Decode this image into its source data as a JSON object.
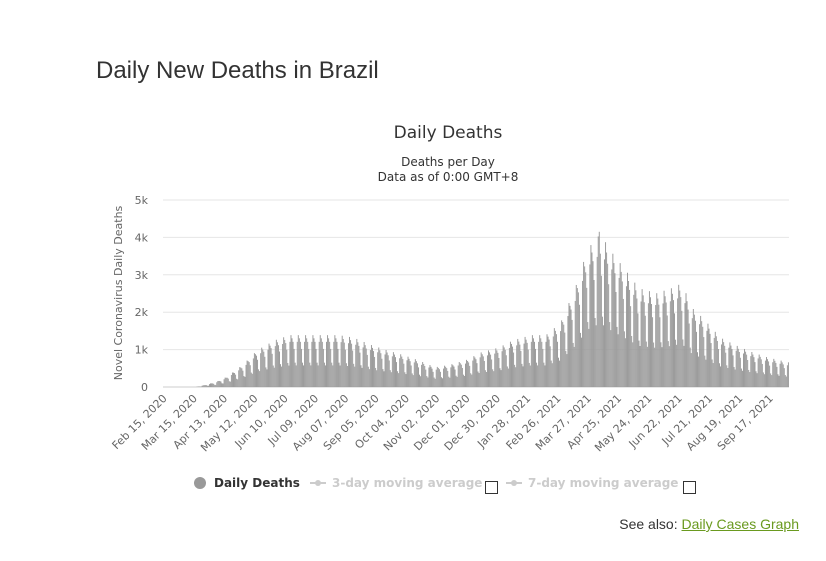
{
  "page": {
    "title": "Daily New Deaths in Brazil",
    "see_also_label": "See also:",
    "see_also_link": "Daily Cases Graph"
  },
  "colors": {
    "bar": "#999999",
    "grid": "#e6e6e6",
    "link": "#6a9a1f",
    "legend_inactive": "#cccccc"
  },
  "legend": {
    "items": [
      {
        "label": "Daily Deaths",
        "active": true,
        "icon": "circle-marker-icon"
      },
      {
        "label": "3-day moving average",
        "active": false,
        "icon": "line-marker-icon"
      },
      {
        "label": "7-day moving average",
        "active": false,
        "icon": "line-marker-icon"
      }
    ]
  },
  "chart_data": {
    "type": "bar",
    "title": "Daily Deaths",
    "subtitle_lines": [
      "Deaths per Day",
      "Data as of 0:00 GMT+8"
    ],
    "ylabel": "Novel Coronavirus Daily Deaths",
    "xlabel": "",
    "ylim": [
      0,
      5000
    ],
    "y_ticks": [
      0,
      1000,
      2000,
      3000,
      4000,
      5000
    ],
    "y_tick_labels": [
      "0",
      "1k",
      "2k",
      "3k",
      "4k",
      "5k"
    ],
    "x_tick_labels": [
      "Feb 15, 2020",
      "Mar 15, 2020",
      "Apr 13, 2020",
      "May 12, 2020",
      "Jun 10, 2020",
      "Jul 09, 2020",
      "Aug 07, 2020",
      "Sep 05, 2020",
      "Oct 04, 2020",
      "Nov 02, 2020",
      "Dec 01, 2020",
      "Dec 30, 2020",
      "Jan 28, 2021",
      "Feb 26, 2021",
      "Mar 27, 2021",
      "Apr 25, 2021",
      "May 24, 2021",
      "Jun 22, 2021",
      "Jul 21, 2021",
      "Aug 19, 2021",
      "Sep 17, 2021"
    ],
    "x_start_date": "2020-02-15",
    "x_end_date": "2021-10-05",
    "grid": true,
    "legend_position": "bottom",
    "series": [
      {
        "name": "Daily Deaths",
        "weekly_average_points": [
          [
            "2020-02-15",
            0
          ],
          [
            "2020-03-17",
            0
          ],
          [
            "2020-03-25",
            40
          ],
          [
            "2020-04-05",
            100
          ],
          [
            "2020-04-15",
            200
          ],
          [
            "2020-05-01",
            450
          ],
          [
            "2020-05-15",
            750
          ],
          [
            "2020-06-01",
            950
          ],
          [
            "2020-06-15",
            1050
          ],
          [
            "2020-07-01",
            1050
          ],
          [
            "2020-07-15",
            1050
          ],
          [
            "2020-08-01",
            1050
          ],
          [
            "2020-08-15",
            1000
          ],
          [
            "2020-09-01",
            850
          ],
          [
            "2020-09-15",
            750
          ],
          [
            "2020-10-01",
            650
          ],
          [
            "2020-10-15",
            550
          ],
          [
            "2020-11-01",
            400
          ],
          [
            "2020-11-15",
            450
          ],
          [
            "2020-12-01",
            550
          ],
          [
            "2020-12-15",
            700
          ],
          [
            "2021-01-01",
            800
          ],
          [
            "2021-01-15",
            950
          ],
          [
            "2021-02-01",
            1050
          ],
          [
            "2021-02-15",
            1050
          ],
          [
            "2021-03-01",
            1300
          ],
          [
            "2021-03-15",
            2000
          ],
          [
            "2021-03-27",
            2800
          ],
          [
            "2021-04-08",
            3100
          ],
          [
            "2021-04-20",
            2700
          ],
          [
            "2021-05-01",
            2400
          ],
          [
            "2021-05-15",
            2000
          ],
          [
            "2021-06-01",
            1900
          ],
          [
            "2021-06-15",
            2000
          ],
          [
            "2021-06-25",
            2100
          ],
          [
            "2021-07-05",
            1600
          ],
          [
            "2021-07-15",
            1400
          ],
          [
            "2021-08-01",
            1000
          ],
          [
            "2021-08-15",
            850
          ],
          [
            "2021-09-01",
            700
          ],
          [
            "2021-09-15",
            600
          ],
          [
            "2021-10-05",
            500
          ]
        ],
        "peak_value": 4150,
        "peak_date": "2021-04-07"
      }
    ]
  }
}
